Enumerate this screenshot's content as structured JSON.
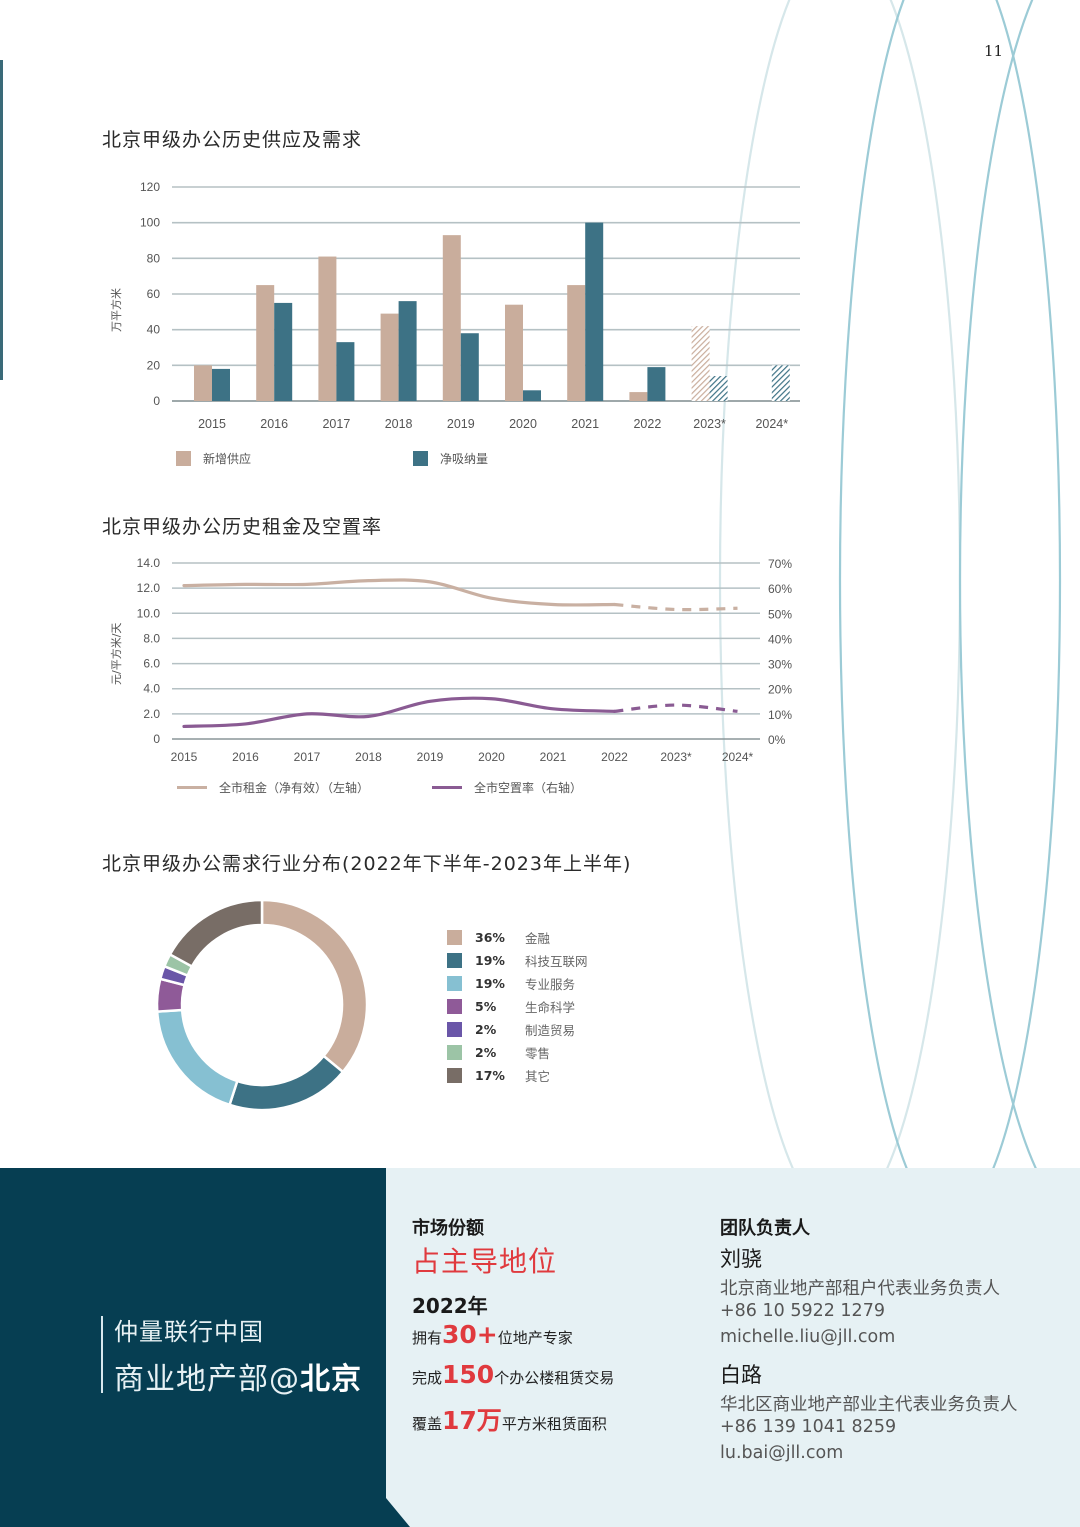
{
  "page": {
    "number": "11"
  },
  "colors": {
    "supply": "#c9ad9c",
    "absorption": "#3d7285",
    "rent": "#c9b0a2",
    "vacancy": "#8a5b93",
    "grid": "#b5c1c4",
    "footer_dark": "#063e52",
    "footer_light": "#e6f1f4",
    "accent_red": "#e03a3e",
    "arc": "#9ccbd6"
  },
  "chart_data": [
    {
      "type": "bar",
      "title": "北京甲级办公历史供应及需求",
      "ylabel": "万平方米",
      "xlabel": "",
      "ylim": [
        0,
        120
      ],
      "yticks": [
        0,
        20,
        40,
        60,
        80,
        100,
        120
      ],
      "categories": [
        "2015",
        "2016",
        "2017",
        "2018",
        "2019",
        "2020",
        "2021",
        "2022",
        "2023*",
        "2024*"
      ],
      "series": [
        {
          "name": "新增供应",
          "values": [
            20,
            65,
            81,
            49,
            93,
            54,
            65,
            5,
            42,
            0
          ]
        },
        {
          "name": "净吸纳量",
          "values": [
            18,
            55,
            33,
            56,
            38,
            6,
            100,
            19,
            14,
            20
          ]
        }
      ],
      "forecast_categories": [
        "2023*",
        "2024*"
      ],
      "grid": true,
      "legend_position": "bottom"
    },
    {
      "type": "line",
      "title": "北京甲级办公历史租金及空置率",
      "ylabel": "元/平方米/天",
      "ylim": [
        0,
        14
      ],
      "yticks": [
        "0",
        "2.0",
        "4.0",
        "6.0",
        "8.0",
        "10.0",
        "12.0",
        "14.0"
      ],
      "y2lim": [
        0,
        70
      ],
      "y2ticks": [
        "0%",
        "10%",
        "20%",
        "30%",
        "40%",
        "50%",
        "60%",
        "70%"
      ],
      "x": [
        "2015",
        "2016",
        "2017",
        "2018",
        "2019",
        "2020",
        "2021",
        "2022",
        "2023*",
        "2024*"
      ],
      "series": [
        {
          "name": "全市租金（净有效）（左轴）",
          "axis": "left",
          "values": [
            12.2,
            12.3,
            12.3,
            12.6,
            12.5,
            11.2,
            10.7,
            10.7,
            10.3,
            10.4
          ]
        },
        {
          "name": "全市空置率（右轴）",
          "axis": "right",
          "values": [
            5,
            6,
            10,
            9,
            15,
            16,
            12,
            11,
            13.5,
            11
          ]
        }
      ],
      "forecast_categories": [
        "2023*",
        "2024*"
      ],
      "grid": true,
      "legend_position": "bottom"
    },
    {
      "type": "pie",
      "title": "北京甲级办公需求行业分布(2022年下半年-2023年上半年)",
      "categories": [
        "金融",
        "科技互联网",
        "专业服务",
        "生命科学",
        "制造贸易",
        "零售",
        "其它"
      ],
      "values": [
        36,
        19,
        19,
        5,
        2,
        2,
        17
      ],
      "labels": [
        "36%",
        "19%",
        "19%",
        "5%",
        "2%",
        "2%",
        "17%"
      ],
      "colors": [
        "#c9ad9c",
        "#3d7285",
        "#86c0d2",
        "#8f5a98",
        "#6a56a8",
        "#9cc4a6",
        "#786d66"
      ],
      "donut": true,
      "legend_position": "right"
    }
  ],
  "chart1": {
    "title": "北京甲级办公历史供应及需求",
    "ylabel": "万平方米",
    "legend": [
      "新增供应",
      "净吸纳量"
    ]
  },
  "chart2": {
    "title": "北京甲级办公历史租金及空置率",
    "ylabel": "元/平方米/天",
    "legend": [
      "全市租金（净有效）（左轴）",
      "全市空置率（右轴）"
    ]
  },
  "chart3": {
    "title": "北京甲级办公需求行业分布(2022年下半年-2023年上半年)",
    "legend": [
      {
        "pct": "36%",
        "label": "金融"
      },
      {
        "pct": "19%",
        "label": "科技互联网"
      },
      {
        "pct": "19%",
        "label": "专业服务"
      },
      {
        "pct": "5%",
        "label": "生命科学"
      },
      {
        "pct": "2%",
        "label": "制造贸易"
      },
      {
        "pct": "2%",
        "label": "零售"
      },
      {
        "pct": "17%",
        "label": "其它"
      }
    ]
  },
  "footer": {
    "brand_line1": "仲量联行中国",
    "brand_line2_prefix": "商业地产部@",
    "brand_line2_bold": "北京",
    "market_share": {
      "heading": "市场份额",
      "headline": "占主导地位",
      "year": "2022年",
      "stats": [
        {
          "pre": "拥有",
          "num": "30+",
          "post": "位地产专家"
        },
        {
          "pre": "完成",
          "num": "150",
          "post": "个办公楼租赁交易"
        },
        {
          "pre": "覆盖",
          "num": "17万",
          "post": "平方米租赁面积"
        }
      ]
    },
    "team": {
      "heading": "团队负责人",
      "people": [
        {
          "name": "刘骁",
          "title": "北京商业地产部租户代表业务负责人",
          "phone": "+86 10 5922 1279",
          "email": "michelle.liu@jll.com"
        },
        {
          "name": "白路",
          "title": "华北区商业地产部业主代表业务负责人",
          "phone": "+86 139 1041 8259",
          "email": "lu.bai@jll.com"
        }
      ]
    }
  }
}
